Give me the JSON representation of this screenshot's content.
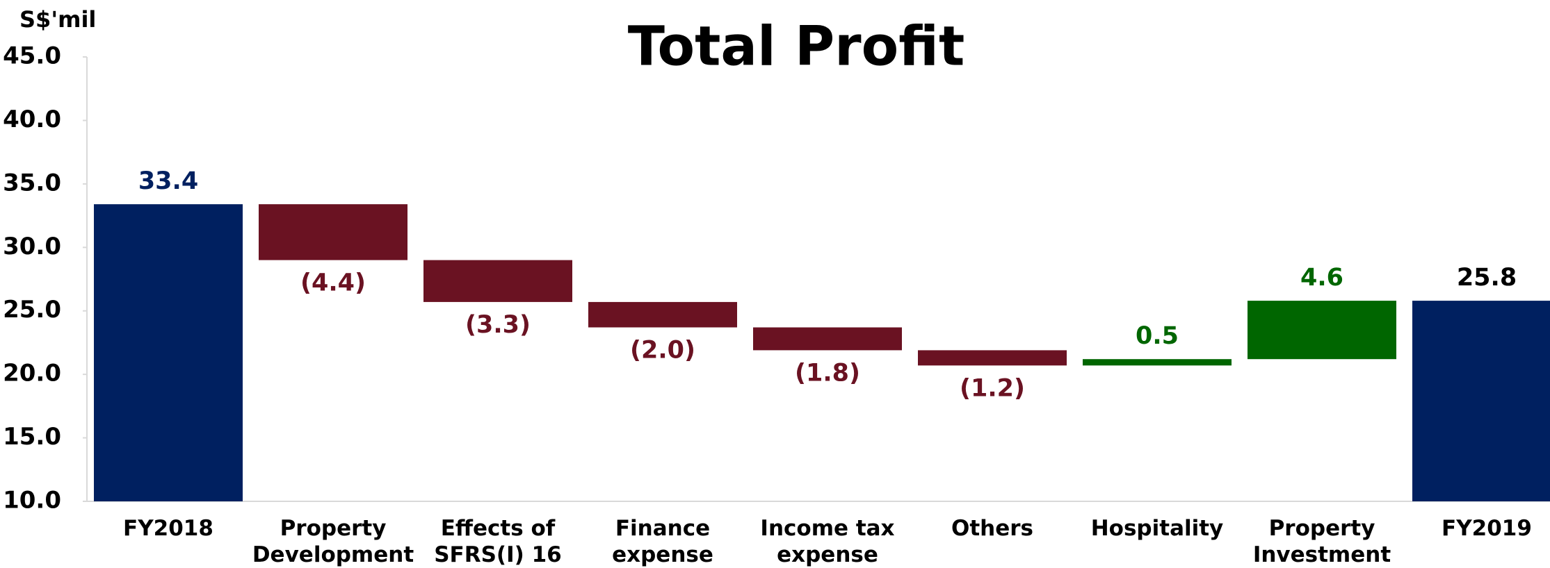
{
  "chart_data": {
    "type": "waterfall",
    "title": "Total Profit",
    "y_label": "S$'mil",
    "categories": [
      "FY2018",
      "Property Development",
      "Effects of SFRS(I) 16",
      "Finance expense",
      "Income tax expense",
      "Others",
      "Hospitality",
      "Property Investment",
      "FY2019"
    ],
    "values": [
      33.4,
      -4.4,
      -3.3,
      -2.0,
      -1.8,
      -1.2,
      0.5,
      4.6,
      25.8
    ],
    "value_labels": [
      "33.4",
      "(4.4)",
      "(3.3)",
      "(2.0)",
      "(1.8)",
      "(1.2)",
      "0.5",
      "4.6",
      "25.8"
    ],
    "measure": [
      "absolute",
      "relative",
      "relative",
      "relative",
      "relative",
      "relative",
      "relative",
      "relative",
      "absolute"
    ],
    "colors": [
      "#002060",
      "#6a1222",
      "#6a1222",
      "#6a1222",
      "#6a1222",
      "#6a1222",
      "#006600",
      "#006600",
      "#002060"
    ],
    "label_colors": [
      "#002060",
      "#6a1222",
      "#6a1222",
      "#6a1222",
      "#6a1222",
      "#6a1222",
      "#006600",
      "#006600",
      "#000000"
    ],
    "ylim": [
      10,
      45
    ],
    "yticks": [
      {
        "value": 10,
        "label": "10.0"
      },
      {
        "value": 15,
        "label": "15.0"
      },
      {
        "value": 20,
        "label": "20.0"
      },
      {
        "value": 25,
        "label": "25.0"
      },
      {
        "value": 30,
        "label": "30.0"
      },
      {
        "value": 35,
        "label": "35.0"
      },
      {
        "value": 40,
        "label": "40.0"
      },
      {
        "value": 45,
        "label": "45.0"
      }
    ],
    "grid": false
  }
}
